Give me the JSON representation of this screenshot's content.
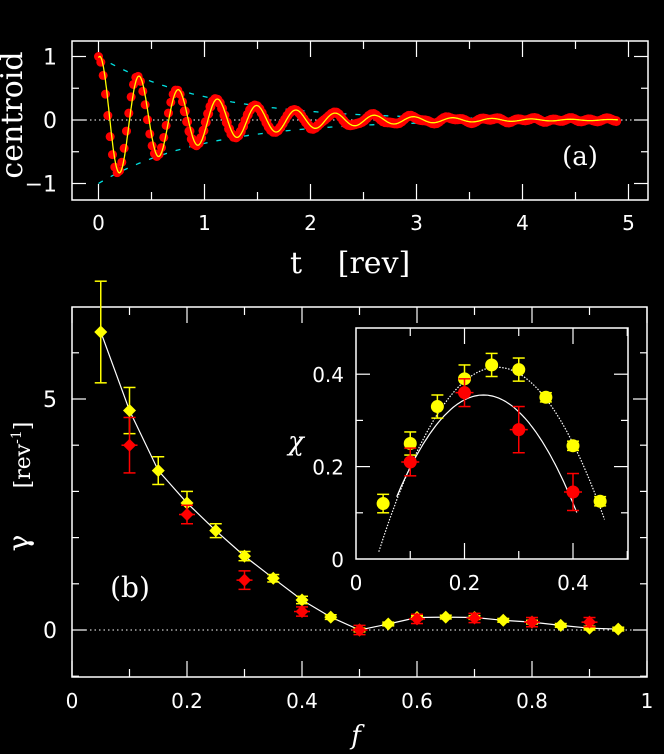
{
  "chart_data": [
    {
      "type": "line",
      "panel_label": "(a)",
      "xlabel": "t",
      "xlabel_unit": "[rev]",
      "ylabel": "centroid",
      "xlim": [
        -0.25,
        5.2
      ],
      "ylim": [
        -1.25,
        1.25
      ],
      "xticks": [
        "0",
        "1",
        "2",
        "3",
        "4",
        "5"
      ],
      "yticks": [
        "1",
        "0",
        "−1"
      ],
      "xtick_values": [
        0,
        1,
        2,
        3,
        4,
        5
      ],
      "ytick_values": [
        1,
        0,
        -1
      ],
      "model": {
        "amplitude": 1.0,
        "decay_rate": 1.0,
        "period": 0.37
      },
      "series": [
        {
          "name": "measured centroid",
          "color": "#ff0000",
          "style": "markers"
        },
        {
          "name": "fit",
          "color": "#ffff00",
          "style": "line"
        },
        {
          "name": "envelope",
          "color": "#00e0e0",
          "style": "dashed"
        }
      ],
      "t_max": 4.9
    },
    {
      "type": "scatter",
      "panel_label": "(b)",
      "xlabel": "f",
      "ylabel": "γ",
      "ylabel_unit": "[rev",
      "ylabel_sup": "-1",
      "ylabel_close": "]",
      "xlim": [
        0,
        1
      ],
      "ylim": [
        -1,
        7
      ],
      "xticks": [
        "0",
        "0.2",
        "0.4",
        "0.6",
        "0.8",
        "1"
      ],
      "xtick_values": [
        0,
        0.2,
        0.4,
        0.6,
        0.8,
        1
      ],
      "yticks": [
        "0",
        "5"
      ],
      "ytick_values": [
        0,
        5
      ],
      "series": [
        {
          "name": "yellow",
          "color": "#ffff00",
          "x": [
            0.05,
            0.1,
            0.15,
            0.2,
            0.25,
            0.3,
            0.35,
            0.4,
            0.45,
            0.5,
            0.55,
            0.6,
            0.65,
            0.7,
            0.75,
            0.8,
            0.85,
            0.9,
            0.95
          ],
          "y": [
            6.45,
            4.75,
            3.45,
            2.75,
            2.15,
            1.6,
            1.12,
            0.65,
            0.28,
            0.0,
            0.13,
            0.27,
            0.28,
            0.27,
            0.21,
            0.17,
            0.1,
            0.04,
            0.02
          ],
          "err": [
            1.1,
            0.5,
            0.3,
            0.25,
            0.15,
            0.1,
            0.08,
            0.08,
            0.05,
            0.04,
            0.04,
            0.04,
            0.04,
            0.04,
            0.04,
            0.04,
            0.04,
            0.04,
            0.04
          ]
        },
        {
          "name": "red",
          "color": "#ff0000",
          "x": [
            0.1,
            0.2,
            0.3,
            0.4,
            0.5,
            0.6,
            0.7,
            0.8,
            0.9
          ],
          "y": [
            4.0,
            2.5,
            1.08,
            0.4,
            0.0,
            0.24,
            0.26,
            0.17,
            0.17
          ],
          "err": [
            0.6,
            0.2,
            0.2,
            0.1,
            0.1,
            0.1,
            0.1,
            0.1,
            0.1
          ]
        }
      ]
    },
    {
      "type": "scatter",
      "panel_label": "inset",
      "ylabel": "χ",
      "xlim": [
        0,
        0.5
      ],
      "ylim": [
        0,
        0.5
      ],
      "xticks": [
        "0",
        "0.2",
        "0.4"
      ],
      "xtick_values": [
        0,
        0.2,
        0.4
      ],
      "yticks": [
        "0",
        "0.2",
        "0.4"
      ],
      "ytick_values": [
        0,
        0.2,
        0.4
      ],
      "series": [
        {
          "name": "yellow",
          "color": "#ffff00",
          "x": [
            0.05,
            0.1,
            0.15,
            0.2,
            0.25,
            0.3,
            0.35,
            0.4,
            0.45
          ],
          "y": [
            0.12,
            0.25,
            0.33,
            0.39,
            0.42,
            0.41,
            0.35,
            0.245,
            0.125
          ],
          "err": [
            0.02,
            0.025,
            0.025,
            0.03,
            0.025,
            0.025,
            0.01,
            0.01,
            0.01
          ],
          "fit_peak": [
            0.26,
            0.415
          ]
        },
        {
          "name": "red",
          "color": "#ff0000",
          "x": [
            0.1,
            0.2,
            0.3,
            0.4
          ],
          "y": [
            0.21,
            0.36,
            0.28,
            0.145
          ],
          "err": [
            0.03,
            0.03,
            0.05,
            0.04
          ],
          "fit_peak": [
            0.235,
            0.355
          ]
        }
      ]
    }
  ]
}
